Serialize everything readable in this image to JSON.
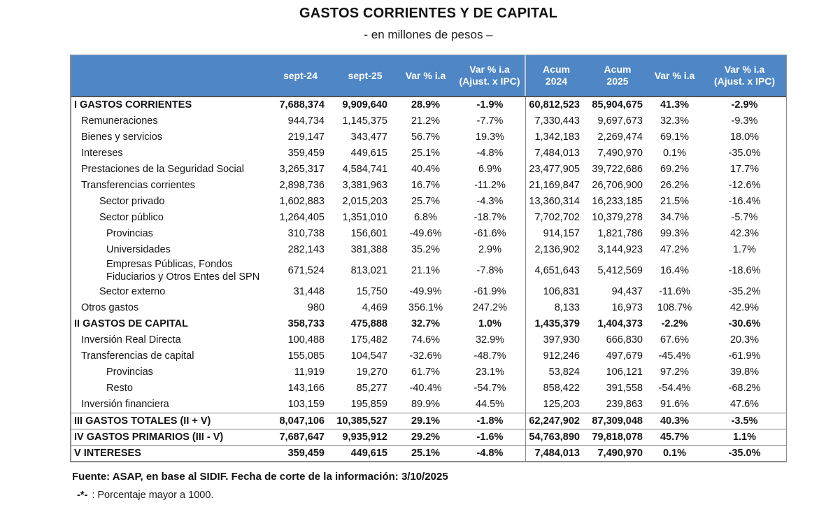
{
  "colors": {
    "header_bg": "#4e86c6",
    "header_text": "#ffffff",
    "border": "#8c8c8c",
    "dark_rule": "#545454"
  },
  "chart_data": {
    "type": "table",
    "title": "GASTOS CORRIENTES Y DE CAPITAL",
    "subtitle": "- en millones de pesos –",
    "column_headers": [
      {
        "line1": "sept-24",
        "line2": ""
      },
      {
        "line1": "sept-25",
        "line2": ""
      },
      {
        "line1": "Var % i.a",
        "line2": ""
      },
      {
        "line1": "Var % i.a",
        "line2": "(Ajust. x IPC)"
      },
      {
        "line1": "Acum",
        "line2": "2024"
      },
      {
        "line1": "Acum",
        "line2": "2025"
      },
      {
        "line1": "Var % i.a",
        "line2": ""
      },
      {
        "line1": "Var % i.a",
        "line2": "(Ajust. x IPC)"
      }
    ],
    "rows": [
      {
        "label": "I GASTOS CORRIENTES",
        "indent": 0,
        "bold": true,
        "rule": false,
        "values": [
          "7,688,374",
          "9,909,640",
          "28.9%",
          "-1.9%",
          "60,812,523",
          "85,904,675",
          "41.3%",
          "-2.9%"
        ]
      },
      {
        "label": "Remuneraciones",
        "indent": 1,
        "bold": false,
        "rule": false,
        "values": [
          "944,734",
          "1,145,375",
          "21.2%",
          "-7.7%",
          "7,330,443",
          "9,697,673",
          "32.3%",
          "-9.3%"
        ]
      },
      {
        "label": "Bienes y servicios",
        "indent": 1,
        "bold": false,
        "rule": false,
        "values": [
          "219,147",
          "343,477",
          "56.7%",
          "19.3%",
          "1,342,183",
          "2,269,474",
          "69.1%",
          "18.0%"
        ]
      },
      {
        "label": "Intereses",
        "indent": 1,
        "bold": false,
        "rule": false,
        "values": [
          "359,459",
          "449,615",
          "25.1%",
          "-4.8%",
          "7,484,013",
          "7,490,970",
          "0.1%",
          "-35.0%"
        ]
      },
      {
        "label": "Prestaciones de la Seguridad Social",
        "indent": 1,
        "bold": false,
        "rule": false,
        "values": [
          "3,265,317",
          "4,584,741",
          "40.4%",
          "6.9%",
          "23,477,905",
          "39,722,686",
          "69.2%",
          "17.7%"
        ]
      },
      {
        "label": "Transferencias corrientes",
        "indent": 1,
        "bold": false,
        "rule": false,
        "values": [
          "2,898,736",
          "3,381,963",
          "16.7%",
          "-11.2%",
          "21,169,847",
          "26,706,900",
          "26.2%",
          "-12.6%"
        ]
      },
      {
        "label": "Sector privado",
        "indent": 2,
        "bold": false,
        "rule": false,
        "values": [
          "1,602,883",
          "2,015,203",
          "25.7%",
          "-4.3%",
          "13,360,314",
          "16,233,185",
          "21.5%",
          "-16.4%"
        ]
      },
      {
        "label": "Sector público",
        "indent": 2,
        "bold": false,
        "rule": false,
        "values": [
          "1,264,405",
          "1,351,010",
          "6.8%",
          "-18.7%",
          "7,702,702",
          "10,379,278",
          "34.7%",
          "-5.7%"
        ]
      },
      {
        "label": "Provincias",
        "indent": 3,
        "bold": false,
        "rule": false,
        "values": [
          "310,738",
          "156,601",
          "-49.6%",
          "-61.6%",
          "914,157",
          "1,821,786",
          "99.3%",
          "42.3%"
        ]
      },
      {
        "label": "Universidades",
        "indent": 3,
        "bold": false,
        "rule": false,
        "values": [
          "282,143",
          "381,388",
          "35.2%",
          "2.9%",
          "2,136,902",
          "3,144,923",
          "47.2%",
          "1.7%"
        ]
      },
      {
        "label": "Empresas Públicas, Fondos Fiduciarios y Otros Entes del SPN",
        "indent": 3,
        "bold": false,
        "rule": false,
        "values": [
          "671,524",
          "813,021",
          "21.1%",
          "-7.8%",
          "4,651,643",
          "5,412,569",
          "16.4%",
          "-18.6%"
        ]
      },
      {
        "label": "Sector externo",
        "indent": 2,
        "bold": false,
        "rule": false,
        "values": [
          "31,448",
          "15,750",
          "-49.9%",
          "-61.9%",
          "106,831",
          "94,437",
          "-11.6%",
          "-35.2%"
        ]
      },
      {
        "label": "Otros gastos",
        "indent": 1,
        "bold": false,
        "rule": false,
        "values": [
          "980",
          "4,469",
          "356.1%",
          "247.2%",
          "8,133",
          "16,973",
          "108.7%",
          "42.9%"
        ]
      },
      {
        "label": "II GASTOS DE CAPITAL",
        "indent": 0,
        "bold": true,
        "rule": false,
        "values": [
          "358,733",
          "475,888",
          "32.7%",
          "1.0%",
          "1,435,379",
          "1,404,373",
          "-2.2%",
          "-30.6%"
        ]
      },
      {
        "label": "Inversión Real Directa",
        "indent": 1,
        "bold": false,
        "rule": false,
        "values": [
          "100,488",
          "175,482",
          "74.6%",
          "32.9%",
          "397,930",
          "666,830",
          "67.6%",
          "20.3%"
        ]
      },
      {
        "label": "Transferencias de capital",
        "indent": 1,
        "bold": false,
        "rule": false,
        "values": [
          "155,085",
          "104,547",
          "-32.6%",
          "-48.7%",
          "912,246",
          "497,679",
          "-45.4%",
          "-61.9%"
        ]
      },
      {
        "label": "Provincias",
        "indent": 3,
        "bold": false,
        "rule": false,
        "values": [
          "11,919",
          "19,270",
          "61.7%",
          "23.1%",
          "53,824",
          "106,121",
          "97.2%",
          "39.8%"
        ]
      },
      {
        "label": "Resto",
        "indent": 3,
        "bold": false,
        "rule": false,
        "values": [
          "143,166",
          "85,277",
          "-40.4%",
          "-54.7%",
          "858,422",
          "391,558",
          "-54.4%",
          "-68.2%"
        ]
      },
      {
        "label": "Inversión financiera",
        "indent": 1,
        "bold": false,
        "rule": false,
        "values": [
          "103,159",
          "195,859",
          "89.9%",
          "44.5%",
          "125,203",
          "239,863",
          "91.6%",
          "47.6%"
        ]
      },
      {
        "label": "III GASTOS TOTALES (II + V)",
        "indent": 0,
        "bold": true,
        "rule": true,
        "values": [
          "8,047,106",
          "10,385,527",
          "29.1%",
          "-1.8%",
          "62,247,902",
          "87,309,048",
          "40.3%",
          "-3.5%"
        ]
      },
      {
        "label": "IV GASTOS PRIMARIOS (III - V)",
        "indent": 0,
        "bold": true,
        "rule": true,
        "values": [
          "7,687,647",
          "9,935,912",
          "29.2%",
          "-1.6%",
          "54,763,890",
          "79,818,078",
          "45.7%",
          "1.1%"
        ]
      },
      {
        "label": "V INTERESES",
        "indent": 0,
        "bold": true,
        "rule": true,
        "values": [
          "359,459",
          "449,615",
          "25.1%",
          "-4.8%",
          "7,484,013",
          "7,490,970",
          "0.1%",
          "-35.0%"
        ]
      }
    ],
    "source_note": "Fuente: ASAP, en base al SIDIF. Fecha de corte de la información: 3/10/2025",
    "footnote_symbol": "-*-",
    "footnote_text": ": Porcentaje mayor a 1000."
  }
}
